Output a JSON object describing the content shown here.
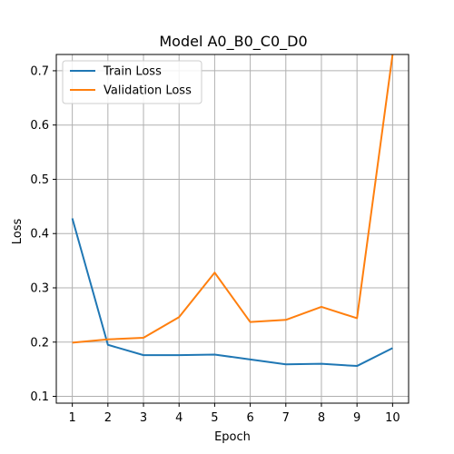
{
  "chart_data": {
    "type": "line",
    "title": "Model A0_B0_C0_D0",
    "xlabel": "Epoch",
    "ylabel": "Loss",
    "x": [
      1,
      2,
      3,
      4,
      5,
      6,
      7,
      8,
      9,
      10
    ],
    "xlim": [
      0.55,
      10.45
    ],
    "ylim": [
      0.0875,
      0.73
    ],
    "xticks": [
      1,
      2,
      3,
      4,
      5,
      6,
      7,
      8,
      9,
      10
    ],
    "yticks": [
      0.1,
      0.2,
      0.3,
      0.4,
      0.5,
      0.6,
      0.7
    ],
    "ytick_labels": [
      "0.1",
      "0.2",
      "0.3",
      "0.4",
      "0.5",
      "0.6",
      "0.7"
    ],
    "grid": true,
    "legend_position": "top-left",
    "series": [
      {
        "name": "Train Loss",
        "color": "#1f77b4",
        "values": [
          0.428,
          0.195,
          0.176,
          0.176,
          0.177,
          0.168,
          0.159,
          0.16,
          0.156,
          0.189
        ]
      },
      {
        "name": "Validation Loss",
        "color": "#ff7f0e",
        "values": [
          0.199,
          0.205,
          0.208,
          0.246,
          0.328,
          0.237,
          0.241,
          0.265,
          0.244,
          0.73
        ]
      }
    ]
  }
}
